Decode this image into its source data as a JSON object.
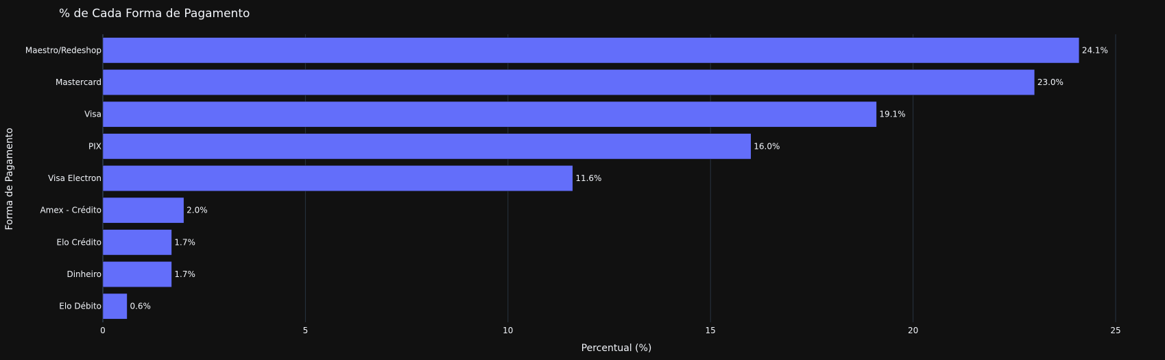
{
  "chart_data": {
    "type": "bar",
    "orientation": "horizontal",
    "title": "% de Cada Forma de Pagamento",
    "xlabel": "Percentual (%)",
    "ylabel": "Forma de Pagamento",
    "xlim": [
      0,
      25
    ],
    "xticks": [
      0,
      5,
      10,
      15,
      20,
      25
    ],
    "grid": true,
    "categories": [
      "Maestro/Redeshop",
      "Mastercard",
      "Visa",
      "PIX",
      "Visa Electron",
      "Amex - Crédito",
      "Elo Crédito",
      "Dinheiro",
      "Elo Débito"
    ],
    "values": [
      24.1,
      23.0,
      19.1,
      16.0,
      11.6,
      2.0,
      1.7,
      1.7,
      0.6
    ],
    "data_labels": [
      "24.1%",
      "23.0%",
      "19.1%",
      "16.0%",
      "11.6%",
      "2.0%",
      "1.7%",
      "1.7%",
      "0.6%"
    ],
    "colors": {
      "background": "#111111",
      "bar": "#636efa",
      "text": "#f2f5fa",
      "grid": "#283442"
    }
  }
}
